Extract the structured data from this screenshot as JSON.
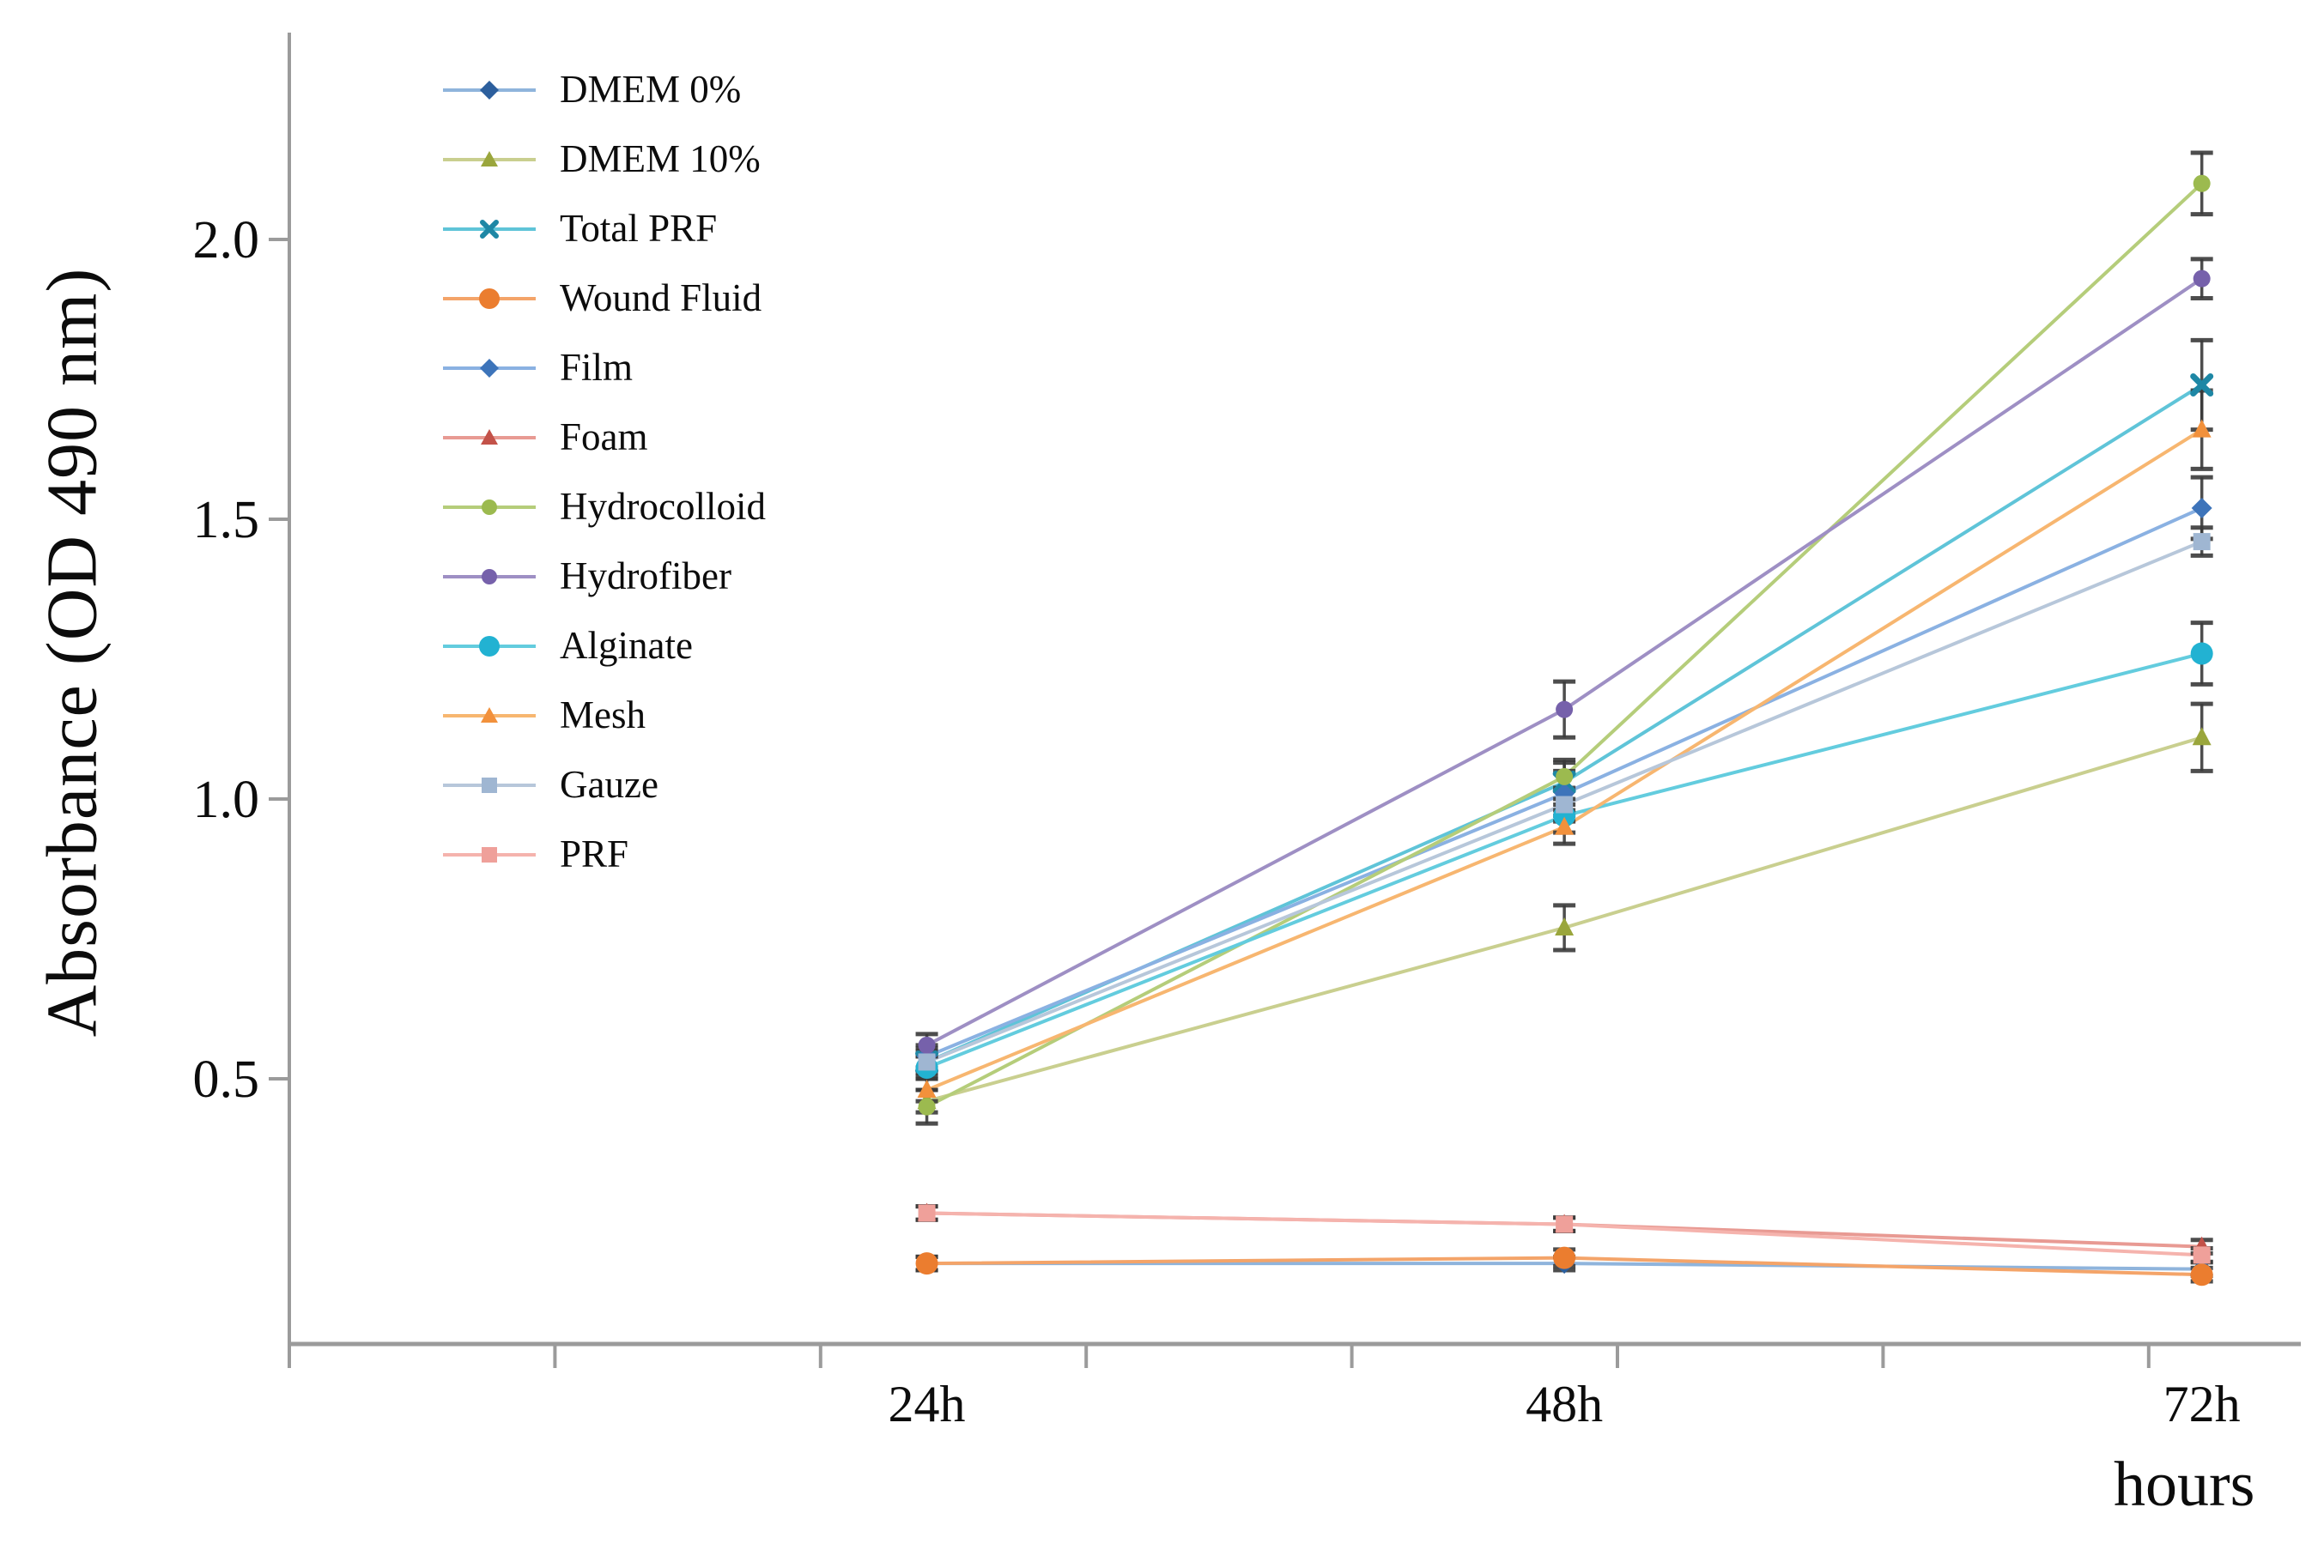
{
  "chart_data": {
    "type": "line",
    "title": "",
    "ylabel": "Absorbance (OD 490 nm)",
    "xlabel": "hours",
    "categories": [
      "24h",
      "48h",
      "72h"
    ],
    "x_hours": [
      24,
      48,
      72
    ],
    "y_ticks": [
      0.5,
      1.0,
      1.5,
      2.0
    ],
    "y_tick_labels": [
      "0.5",
      "1.0",
      "1.5",
      "2.0"
    ],
    "x_minor_tick_hours": [
      0,
      10,
      20,
      30,
      40,
      50,
      60,
      70
    ],
    "ylim": [
      0,
      2.35
    ],
    "xlim_hours": [
      0,
      75.5
    ],
    "grid": false,
    "legend_position": "upper-left-inside",
    "axis_color": "#9b9b9b",
    "error_bar_color": "#3a3a3a",
    "series": [
      {
        "name": "DMEM 0%",
        "marker": "diamond",
        "line_color": "#8fb4dc",
        "marker_color": "#2c5f9d",
        "values": [
          0.17,
          0.17,
          0.16
        ],
        "errors": [
          0.012,
          0.012,
          0.012
        ]
      },
      {
        "name": "DMEM 10%",
        "marker": "triangle",
        "line_color": "#c9cf8f",
        "marker_color": "#9aa63c",
        "values": [
          0.46,
          0.77,
          1.11
        ],
        "errors": [
          0.02,
          0.04,
          0.06
        ]
      },
      {
        "name": "Total PRF",
        "marker": "x",
        "line_color": "#5fc4d8",
        "marker_color": "#1e87a5",
        "values": [
          0.53,
          1.03,
          1.74
        ],
        "errors": [
          0.025,
          0.04,
          0.08
        ]
      },
      {
        "name": "Wound Fluid",
        "marker": "circle-lg",
        "line_color": "#f4a469",
        "marker_color": "#eb7d2f",
        "values": [
          0.17,
          0.18,
          0.15
        ],
        "errors": [
          0.012,
          0.015,
          0.012
        ]
      },
      {
        "name": "Film",
        "marker": "diamond",
        "line_color": "#8ab1e2",
        "marker_color": "#3d74ba",
        "values": [
          0.54,
          1.01,
          1.52
        ],
        "errors": [
          0.02,
          0.04,
          0.055
        ]
      },
      {
        "name": "Foam",
        "marker": "triangle",
        "line_color": "#e89a93",
        "marker_color": "#c35249",
        "values": [
          0.26,
          0.24,
          0.2
        ],
        "errors": [
          0.012,
          0.012,
          0.012
        ]
      },
      {
        "name": "Hydrocolloid",
        "marker": "circle",
        "line_color": "#b5cd7a",
        "marker_color": "#9cba4f",
        "values": [
          0.45,
          1.04,
          2.1
        ],
        "errors": [
          0.03,
          0.025,
          0.055
        ]
      },
      {
        "name": "Hydrofiber",
        "marker": "circle",
        "line_color": "#9e8fc4",
        "marker_color": "#7661ab",
        "values": [
          0.56,
          1.16,
          1.93
        ],
        "errors": [
          0.02,
          0.05,
          0.035
        ]
      },
      {
        "name": "Alginate",
        "marker": "circle-lg",
        "line_color": "#63ccde",
        "marker_color": "#22b2d2",
        "values": [
          0.52,
          0.97,
          1.26
        ],
        "errors": [
          0.02,
          0.03,
          0.055
        ]
      },
      {
        "name": "Mesh",
        "marker": "triangle",
        "line_color": "#f7b670",
        "marker_color": "#f2913c",
        "values": [
          0.48,
          0.95,
          1.66
        ],
        "errors": [
          0.02,
          0.03,
          0.07
        ]
      },
      {
        "name": "Gauze",
        "marker": "square",
        "line_color": "#b7c7da",
        "marker_color": "#9fb6d2",
        "values": [
          0.53,
          0.99,
          1.46
        ],
        "errors": [
          0.02,
          0.03,
          0.025
        ]
      },
      {
        "name": "PRF",
        "marker": "square",
        "line_color": "#f5b3ad",
        "marker_color": "#efa09a",
        "values": [
          0.26,
          0.24,
          0.185
        ],
        "errors": [
          0.012,
          0.012,
          0.012
        ]
      }
    ]
  }
}
